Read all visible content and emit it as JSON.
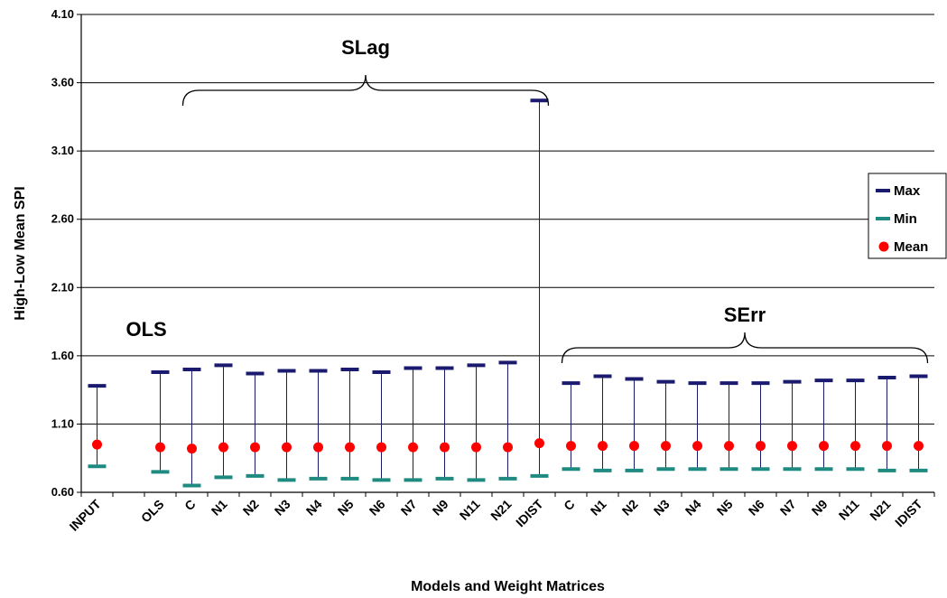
{
  "chart_data": {
    "type": "high-low-mean",
    "xlabel": "Models and Weight Matrices",
    "ylabel": "High-Low Mean SPI",
    "ylim": [
      0.6,
      4.1
    ],
    "yticks": [
      "0.60",
      "1.10",
      "1.60",
      "2.10",
      "2.60",
      "3.10",
      "3.60",
      "4.10"
    ],
    "grid": true,
    "legend_position": "right",
    "categories": [
      "INPUT",
      "",
      "OLS",
      "C",
      "N1",
      "N2",
      "N3",
      "N4",
      "N5",
      "N6",
      "N7",
      "N9",
      "N11",
      "N21",
      "IDIST",
      "C",
      "N1",
      "N2",
      "N3",
      "N4",
      "N5",
      "N6",
      "N7",
      "N9",
      "N11",
      "N21",
      "IDIST"
    ],
    "series": [
      {
        "name": "Max",
        "color": "#1a1a6e",
        "values": [
          1.38,
          null,
          1.48,
          1.5,
          1.53,
          1.47,
          1.49,
          1.49,
          1.5,
          1.48,
          1.51,
          1.51,
          1.53,
          1.55,
          3.47,
          1.4,
          1.45,
          1.43,
          1.41,
          1.4,
          1.4,
          1.4,
          1.41,
          1.42,
          1.42,
          1.44,
          1.45
        ]
      },
      {
        "name": "Min",
        "color": "#1f8a80",
        "values": [
          0.79,
          null,
          0.75,
          0.65,
          0.71,
          0.72,
          0.69,
          0.7,
          0.7,
          0.69,
          0.69,
          0.7,
          0.69,
          0.7,
          0.72,
          0.77,
          0.76,
          0.76,
          0.77,
          0.77,
          0.77,
          0.77,
          0.77,
          0.77,
          0.77,
          0.76,
          0.76
        ]
      },
      {
        "name": "Mean",
        "color": "#ff0000",
        "values": [
          0.95,
          null,
          0.93,
          0.92,
          0.93,
          0.93,
          0.93,
          0.93,
          0.93,
          0.93,
          0.93,
          0.93,
          0.93,
          0.93,
          0.96,
          0.94,
          0.94,
          0.94,
          0.94,
          0.94,
          0.94,
          0.94,
          0.94,
          0.94,
          0.94,
          0.94,
          0.94
        ]
      }
    ],
    "annotations": [
      {
        "text": "OLS",
        "category_index": 2
      },
      {
        "text": "SLag",
        "span": [
          3,
          14
        ]
      },
      {
        "text": "SErr",
        "span": [
          15,
          26
        ]
      }
    ]
  }
}
